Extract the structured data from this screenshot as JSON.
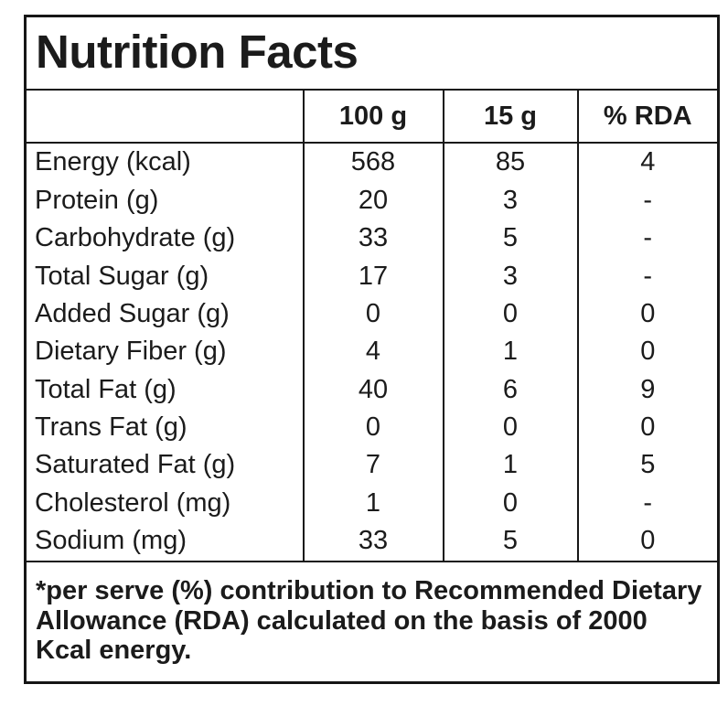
{
  "label": {
    "title": "Nutrition Facts",
    "columns": [
      "",
      "100 g",
      "15 g",
      "% RDA"
    ],
    "rows": [
      {
        "name": "Energy (kcal)",
        "per_100g": "568",
        "per_15g": "85",
        "rda_percent": "4"
      },
      {
        "name": "Protein (g)",
        "per_100g": "20",
        "per_15g": "3",
        "rda_percent": "-"
      },
      {
        "name": "Carbohydrate (g)",
        "per_100g": "33",
        "per_15g": "5",
        "rda_percent": "-"
      },
      {
        "name": "Total Sugar (g)",
        "per_100g": "17",
        "per_15g": "3",
        "rda_percent": "-"
      },
      {
        "name": "Added Sugar (g)",
        "per_100g": "0",
        "per_15g": "0",
        "rda_percent": "0"
      },
      {
        "name": "Dietary Fiber (g)",
        "per_100g": "4",
        "per_15g": "1",
        "rda_percent": "0"
      },
      {
        "name": "Total Fat (g)",
        "per_100g": "40",
        "per_15g": "6",
        "rda_percent": "9"
      },
      {
        "name": "Trans Fat (g)",
        "per_100g": "0",
        "per_15g": "0",
        "rda_percent": "0"
      },
      {
        "name": "Saturated Fat (g)",
        "per_100g": "7",
        "per_15g": "1",
        "rda_percent": "5"
      },
      {
        "name": "Cholesterol (mg)",
        "per_100g": "1",
        "per_15g": "0",
        "rda_percent": "-"
      },
      {
        "name": "Sodium (mg)",
        "per_100g": "33",
        "per_15g": "5",
        "rda_percent": "0"
      }
    ],
    "footnote": "*per serve (%) contribution to Recommended Dietary Allowance (RDA) calculated on the basis of 2000 Kcal energy.",
    "colors": {
      "text": "#1b1b1b",
      "border": "#161616",
      "background": "#ffffff"
    }
  }
}
